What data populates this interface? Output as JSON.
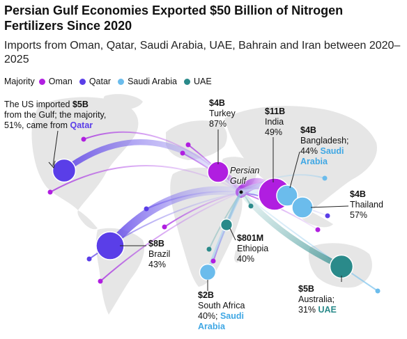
{
  "title": "Persian Gulf Economies Exported $50 Billion of Nitrogen Fertilizers Since 2020",
  "subtitle": "Imports from Oman, Qatar, Saudi Arabia, UAE, Bahrain and Iran between 2020–2025",
  "legend": {
    "label": "Majority",
    "items": [
      {
        "name": "Oman",
        "color": "#b01ee0"
      },
      {
        "name": "Qatar",
        "color": "#5a3ee8"
      },
      {
        "name": "Saudi Arabia",
        "color": "#6bbcec"
      },
      {
        "name": "UAE",
        "color": "#2a8a8a"
      }
    ]
  },
  "hub_label": [
    "Persian",
    "Gulf"
  ],
  "chart_data": {
    "type": "flow-map",
    "title": "Persian Gulf Economies Exported $50 Billion of Nitrogen Fertilizers Since 2020",
    "subtitle": "Imports from Oman, Qatar, Saudi Arabia, UAE, Bahrain and Iran between 2020–2025",
    "origin": "Persian Gulf",
    "series": [
      {
        "name": "Oman",
        "color": "#b01ee0"
      },
      {
        "name": "Qatar",
        "color": "#5a3ee8"
      },
      {
        "name": "Saudi Arabia",
        "color": "#6bbcec"
      },
      {
        "name": "UAE",
        "color": "#2a8a8a"
      }
    ],
    "destinations": [
      {
        "country": "US",
        "value_usd_billion": 5,
        "majority_supplier": "Qatar",
        "majority_share_pct": 51
      },
      {
        "country": "Turkey",
        "value_usd_billion": 4,
        "majority_supplier": "Oman",
        "majority_share_pct": 87
      },
      {
        "country": "India",
        "value_usd_billion": 11,
        "majority_supplier": "Oman",
        "majority_share_pct": 49
      },
      {
        "country": "Bangladesh",
        "value_usd_billion": 4,
        "majority_supplier": "Saudi Arabia",
        "majority_share_pct": 44
      },
      {
        "country": "Thailand",
        "value_usd_billion": 4,
        "majority_supplier": "Saudi Arabia",
        "majority_share_pct": 57
      },
      {
        "country": "Brazil",
        "value_usd_billion": 8,
        "majority_supplier": "Qatar",
        "majority_share_pct": 43
      },
      {
        "country": "Ethiopia",
        "value_usd_billion": 0.801,
        "majority_supplier": "UAE",
        "majority_share_pct": 40
      },
      {
        "country": "South Africa",
        "value_usd_billion": 2,
        "majority_supplier": "Saudi Arabia",
        "majority_share_pct": 40
      },
      {
        "country": "Australia",
        "value_usd_billion": 5,
        "majority_supplier": "UAE",
        "majority_share_pct": 31
      }
    ]
  },
  "annotations": {
    "us": {
      "line1": "The US imported ",
      "value": "$5B",
      "line2": "from the Gulf; the majority,",
      "line3_pre": "51%, came from ",
      "line3_hl": "Qatar",
      "hl_color": "#5a3ee8"
    },
    "turkey": {
      "value": "$4B",
      "name": "Turkey",
      "pct": "87%"
    },
    "india": {
      "value": "$11B",
      "name": "India",
      "pct": "49%"
    },
    "bangladesh": {
      "value": "$4B",
      "name": "Bangladesh;",
      "pct_pre": "44% ",
      "hl1": "Saudi",
      "hl2": "Arabia",
      "hl_color": "#3fa7e4"
    },
    "thailand": {
      "value": "$4B",
      "name": "Thailand",
      "pct": "57%"
    },
    "brazil": {
      "value": "$8B",
      "name": "Brazil",
      "pct": "43%"
    },
    "ethiopia": {
      "value": "$801M",
      "name": "Ethiopia",
      "pct": "40%"
    },
    "south_africa": {
      "value": "$2B",
      "name": "South Africa",
      "pct_pre": "40%; ",
      "hl1": "Saudi",
      "hl2": "Arabia",
      "hl_color": "#3fa7e4"
    },
    "australia": {
      "value": "$5B",
      "name": "Australia;",
      "pct_pre": "31% ",
      "hl1": "UAE",
      "hl_color": "#2a8a8a"
    }
  }
}
